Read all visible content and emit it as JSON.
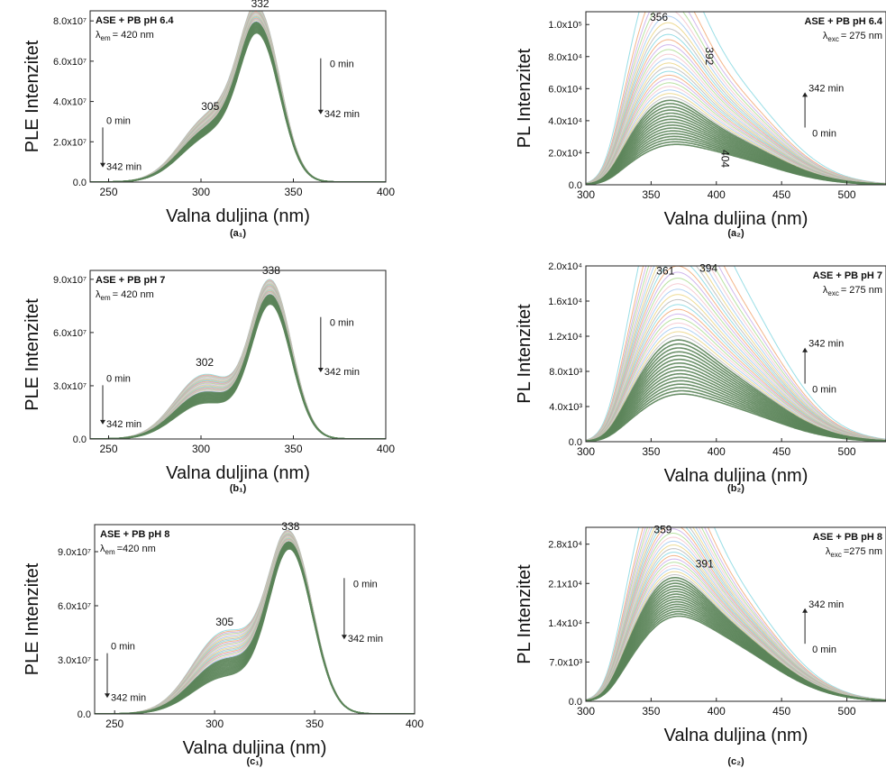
{
  "chart_data": [
    {
      "id": "a1",
      "type": "line",
      "caption": "(a₁)",
      "ylabel": "PLE Intenzitet",
      "xlabel": "Valna duljina (nm)",
      "legend_title": "ASE + PB pH 6.4",
      "legend_sub": "= 420 nm",
      "legend_sym": "λ",
      "legend_subscript": "em",
      "xlim": [
        240,
        400
      ],
      "ylim": [
        0,
        85000000
      ],
      "xticks": [
        {
          "v": 250,
          "t": "250"
        },
        {
          "v": 300,
          "t": "300"
        },
        {
          "v": 350,
          "t": "350"
        },
        {
          "v": 400,
          "t": "400"
        }
      ],
      "yticks": [
        {
          "v": 0,
          "t": "0.0"
        },
        {
          "v": 20000000,
          "t": "2.0x10⁷"
        },
        {
          "v": 40000000,
          "t": "4.0x10⁷"
        },
        {
          "v": 60000000,
          "t": "6.0x10⁷"
        },
        {
          "v": 80000000,
          "t": "8.0x10⁷"
        }
      ],
      "mode": "ple",
      "peak_x": 332,
      "shoulder_x": 305,
      "peak_first": 82000000,
      "peak_last": 70000000,
      "shoulder_first": 32000000,
      "shoulder_last": 22000000,
      "curve_range": [
        270,
        372
      ],
      "n_curves": 36,
      "time_labels": {
        "left": [
          "0 min",
          "342 min"
        ],
        "right": [
          "0 min",
          "342 min"
        ]
      },
      "peak_labels": [
        {
          "x": 332,
          "y": 85000000,
          "t": "332"
        },
        {
          "x": 305,
          "y": 34000000,
          "t": "305"
        }
      ]
    },
    {
      "id": "a2",
      "type": "line",
      "caption": "(a₂)",
      "ylabel": "PL Intenzitet",
      "xlabel": "Valna duljina (nm)",
      "legend_title": "ASE + PB pH 6.4",
      "legend_sub": "= 275 nm",
      "legend_sym": "λ",
      "legend_subscript": "exc",
      "xlim": [
        300,
        530
      ],
      "ylim": [
        0,
        108000
      ],
      "xticks": [
        {
          "v": 300,
          "t": "300"
        },
        {
          "v": 350,
          "t": "350"
        },
        {
          "v": 400,
          "t": "400"
        },
        {
          "v": 450,
          "t": "450"
        },
        {
          "v": 500,
          "t": "500"
        }
      ],
      "yticks": [
        {
          "v": 0,
          "t": "0.0"
        },
        {
          "v": 20000,
          "t": "2.0x10⁴"
        },
        {
          "v": 40000,
          "t": "4.0x10⁴"
        },
        {
          "v": 60000,
          "t": "6.0x10⁴"
        },
        {
          "v": 80000,
          "t": "8.0x10⁴"
        },
        {
          "v": 100000,
          "t": "1.0x10⁵"
        }
      ],
      "mode": "pl",
      "p1_x": 356,
      "p2_x": 392,
      "first_p1": 97000,
      "first_p2": 68000,
      "last_p1": 12000,
      "last_p2": 18000,
      "n_curves": 40,
      "time_labels": {
        "right": [
          "342 min",
          "0 min"
        ]
      },
      "peak_labels": [
        {
          "x": 356,
          "y": 100000,
          "t": "356"
        },
        {
          "x": 392,
          "y": 78000,
          "t": "392",
          "rot": 90
        },
        {
          "x": 404,
          "y": 14000,
          "t": "404",
          "rot": 90
        }
      ]
    },
    {
      "id": "b1",
      "type": "line",
      "caption": "(b₁)",
      "ylabel": "PLE Intenzitet",
      "xlabel": "Valna duljina (nm)",
      "legend_title": "ASE + PB pH 7",
      "legend_sub": "= 420 nm",
      "legend_sym": "λ",
      "legend_subscript": "em",
      "xlim": [
        240,
        400
      ],
      "ylim": [
        0,
        95000000
      ],
      "xticks": [
        {
          "v": 250,
          "t": "250"
        },
        {
          "v": 300,
          "t": "300"
        },
        {
          "v": 350,
          "t": "350"
        },
        {
          "v": 400,
          "t": "400"
        }
      ],
      "yticks": [
        {
          "v": 0,
          "t": "0.0"
        },
        {
          "v": 30000000,
          "t": "3.0x10⁷"
        },
        {
          "v": 60000000,
          "t": "6.0x10⁷"
        },
        {
          "v": 90000000,
          "t": "9.0x10⁷"
        }
      ],
      "mode": "ple",
      "peak_x": 338,
      "shoulder_x": 302,
      "peak_first": 88000000,
      "peak_last": 75000000,
      "shoulder_first": 36000000,
      "shoulder_last": 20000000,
      "curve_range": [
        265,
        375
      ],
      "n_curves": 36,
      "time_labels": {
        "left": [
          "0 min",
          "342 min"
        ],
        "right": [
          "0 min",
          "342 min"
        ]
      },
      "peak_labels": [
        {
          "x": 338,
          "y": 91000000,
          "t": "338"
        },
        {
          "x": 302,
          "y": 39000000,
          "t": "302"
        }
      ]
    },
    {
      "id": "b2",
      "type": "line",
      "caption": "(b₂)",
      "ylabel": "PL Intenzitet",
      "xlabel": "Valna duljina (nm)",
      "legend_title": "ASE + PB pH 7",
      "legend_sub": "= 275 nm",
      "legend_sym": "λ",
      "legend_subscript": "exc",
      "xlim": [
        300,
        530
      ],
      "ylim": [
        0,
        20000
      ],
      "xticks": [
        {
          "v": 300,
          "t": "300"
        },
        {
          "v": 350,
          "t": "350"
        },
        {
          "v": 400,
          "t": "400"
        },
        {
          "v": 450,
          "t": "450"
        },
        {
          "v": 500,
          "t": "500"
        }
      ],
      "yticks": [
        {
          "v": 0,
          "t": "0.0"
        },
        {
          "v": 4000,
          "t": "4.0x10³"
        },
        {
          "v": 8000,
          "t": "8.0x10³"
        },
        {
          "v": 12000,
          "t": "1.2x10⁴"
        },
        {
          "v": 16000,
          "t": "1.6x10⁴"
        },
        {
          "v": 20000,
          "t": "2.0x10⁴"
        }
      ],
      "mode": "pl",
      "p1_x": 361,
      "p2_x": 394,
      "first_p1": 18000,
      "first_p2": 18500,
      "last_p1": 2500,
      "last_p2": 3800,
      "n_curves": 40,
      "time_labels": {
        "right": [
          "342 min",
          "0 min"
        ]
      },
      "peak_labels": [
        {
          "x": 361,
          "y": 18600,
          "t": "361"
        },
        {
          "x": 394,
          "y": 18900,
          "t": "394"
        }
      ]
    },
    {
      "id": "c1",
      "type": "line",
      "caption": "(c₁)",
      "ylabel": "PLE Intenzitet",
      "xlabel": "Valna duljina (nm)",
      "legend_title": "ASE + PB pH 8",
      "legend_sub": "=420 nm",
      "legend_sym": "λ",
      "legend_subscript": "em",
      "xlim": [
        240,
        400
      ],
      "ylim": [
        0,
        105000000
      ],
      "xticks": [
        {
          "v": 250,
          "t": "250"
        },
        {
          "v": 300,
          "t": "300"
        },
        {
          "v": 350,
          "t": "350"
        },
        {
          "v": 400,
          "t": "400"
        }
      ],
      "yticks": [
        {
          "v": 0,
          "t": "0.0"
        },
        {
          "v": 30000000,
          "t": "3.0x10⁷"
        },
        {
          "v": 60000000,
          "t": "6.0x10⁷"
        },
        {
          "v": 90000000,
          "t": "9.0x10⁷"
        }
      ],
      "mode": "ple",
      "peak_x": 338,
      "shoulder_x": 305,
      "peak_first": 98000000,
      "peak_last": 90000000,
      "shoulder_first": 45000000,
      "shoulder_last": 20000000,
      "curve_range": [
        262,
        372
      ],
      "n_curves": 36,
      "time_labels": {
        "left": [
          "0 min",
          "342 min"
        ],
        "right": [
          "0 min",
          "342 min"
        ]
      },
      "peak_labels": [
        {
          "x": 338,
          "y": 100000000,
          "t": "338"
        },
        {
          "x": 305,
          "y": 47000000,
          "t": "305"
        }
      ]
    },
    {
      "id": "c2",
      "type": "line",
      "caption": "(c₂)",
      "ylabel": "PL Intenzitet",
      "xlabel": "Valna duljina (nm)",
      "legend_title": "ASE + PB pH 8",
      "legend_sub": "=275 nm",
      "legend_sym": "λ",
      "legend_subscript": "exc",
      "xlim": [
        300,
        530
      ],
      "ylim": [
        0,
        31000
      ],
      "xticks": [
        {
          "v": 300,
          "t": "300"
        },
        {
          "v": 350,
          "t": "350"
        },
        {
          "v": 400,
          "t": "400"
        },
        {
          "v": 450,
          "t": "450"
        },
        {
          "v": 500,
          "t": "500"
        }
      ],
      "yticks": [
        {
          "v": 0,
          "t": "0.0"
        },
        {
          "v": 7000,
          "t": "7.0x10³"
        },
        {
          "v": 14000,
          "t": "1.4x10⁴"
        },
        {
          "v": 21000,
          "t": "2.1x10⁴"
        },
        {
          "v": 28000,
          "t": "2.8x10⁴"
        }
      ],
      "mode": "pl",
      "p1_x": 359,
      "p2_x": 391,
      "first_p1": 28500,
      "first_p2": 22000,
      "last_p1": 7000,
      "last_p2": 10500,
      "n_curves": 40,
      "time_labels": {
        "right": [
          "342 min",
          "0 min"
        ]
      },
      "peak_labels": [
        {
          "x": 359,
          "y": 29300,
          "t": "359"
        },
        {
          "x": 391,
          "y": 23200,
          "t": "391"
        }
      ]
    }
  ],
  "colors": {
    "final_curve": "#4f7a4a",
    "band_dark": "#5b8459",
    "palette": [
      "#7fd6e0",
      "#f0a36b",
      "#c6a6e8",
      "#a7d98b",
      "#f4c1c9",
      "#9ec6f0",
      "#e8d27a",
      "#b4b4b4"
    ]
  }
}
